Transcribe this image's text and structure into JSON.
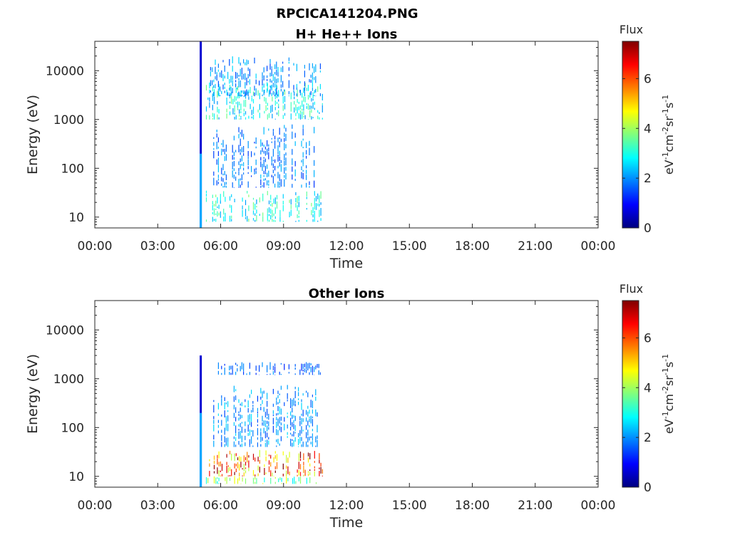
{
  "figure_title": "RPCICA141204.PNG",
  "colors": {
    "axis": "#262626",
    "background": "#ffffff",
    "colormap": [
      "#00007f",
      "#0000ff",
      "#007fff",
      "#00ffff",
      "#7fff7f",
      "#ffff00",
      "#ff7f00",
      "#ff0000",
      "#7f0000"
    ]
  },
  "chart_data": [
    {
      "type": "heatmap",
      "title": "H+ He++ Ions",
      "xlabel": "Time",
      "ylabel": "Energy (eV)",
      "x_ticks": [
        "00:00",
        "03:00",
        "06:00",
        "09:00",
        "12:00",
        "15:00",
        "18:00",
        "21:00",
        "00:00"
      ],
      "x_range_hours": [
        0,
        24
      ],
      "y_scale": "log",
      "y_ticks": [
        "10",
        "100",
        "1000",
        "10000"
      ],
      "y_range": [
        6,
        40000
      ],
      "colorbar": {
        "title": "Flux",
        "label": "eV-1cm-2sr-1s-1",
        "ticks": [
          "0",
          "2",
          "4",
          "6"
        ],
        "range": [
          0,
          7.5
        ]
      },
      "data_interval_hours": [
        5.2,
        10.9
      ],
      "sweep": {
        "time_hours": 5.05,
        "energy_range": [
          6,
          40000
        ],
        "value": 0.6
      },
      "bands": [
        {
          "time_range": [
            5.3,
            10.9
          ],
          "energy_range": [
            1000,
            6000
          ],
          "value": 3.1
        },
        {
          "time_range": [
            5.3,
            10.9
          ],
          "energy_range": [
            8,
            35
          ],
          "value": 3.2
        },
        {
          "time_range": [
            5.5,
            10.8
          ],
          "energy_range": [
            3000,
            20000
          ],
          "value": 2.2
        },
        {
          "time_range": [
            5.5,
            10.5
          ],
          "energy_range": [
            40,
            800
          ],
          "value": 2.0
        }
      ]
    },
    {
      "type": "heatmap",
      "title": "Other Ions",
      "xlabel": "Time",
      "ylabel": "Energy (eV)",
      "x_ticks": [
        "00:00",
        "03:00",
        "06:00",
        "09:00",
        "12:00",
        "15:00",
        "18:00",
        "21:00",
        "00:00"
      ],
      "x_range_hours": [
        0,
        24
      ],
      "y_scale": "log",
      "y_ticks": [
        "10",
        "100",
        "1000",
        "10000"
      ],
      "y_range": [
        6,
        40000
      ],
      "colorbar": {
        "title": "Flux",
        "label": "eV-1cm-2sr-1s-1",
        "ticks": [
          "0",
          "2",
          "4",
          "6"
        ],
        "range": [
          0,
          7.5
        ]
      },
      "data_interval_hours": [
        5.2,
        10.9
      ],
      "sweep": {
        "time_hours": 5.05,
        "energy_range": [
          6,
          3000
        ],
        "value": 0.6
      },
      "bands": [
        {
          "time_range": [
            5.3,
            10.9
          ],
          "energy_range": [
            10,
            35
          ],
          "value": 6.3
        },
        {
          "time_range": [
            5.3,
            10.9
          ],
          "energy_range": [
            7,
            10
          ],
          "value": 4.0
        },
        {
          "time_range": [
            5.5,
            10.6
          ],
          "energy_range": [
            40,
            800
          ],
          "value": 2.2
        },
        {
          "time_range": [
            5.8,
            10.8
          ],
          "energy_range": [
            1200,
            2200
          ],
          "value": 1.8
        }
      ]
    }
  ]
}
